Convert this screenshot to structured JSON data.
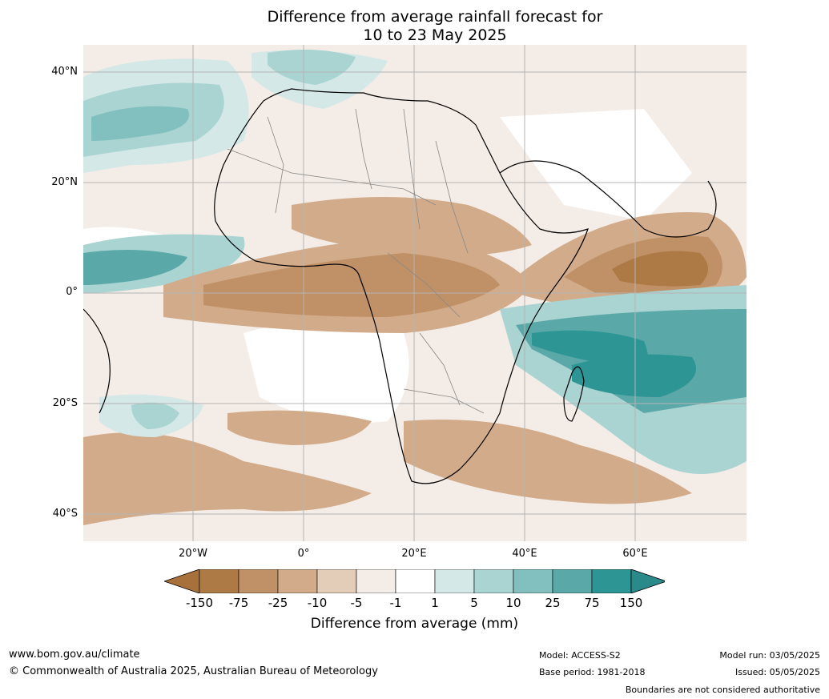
{
  "title_line1": "Difference from average rainfall forecast for",
  "title_line2": "10 to 23 May 2025",
  "lat_labels": [
    "40°N",
    "20°N",
    "0°",
    "20°S",
    "40°S"
  ],
  "lon_labels": [
    "20°W",
    "0°",
    "20°E",
    "40°E",
    "60°E"
  ],
  "colorbar": {
    "labels": [
      "-150",
      "-75",
      "-25",
      "-10",
      "-5",
      "-1",
      "1",
      "5",
      "10",
      "25",
      "75",
      "150"
    ],
    "colors": [
      "#a8713c",
      "#ad7a45",
      "#c09066",
      "#d2ac8a",
      "#e3ccb8",
      "#f4ece6",
      "#ffffff",
      "#d4e8e7",
      "#a9d4d2",
      "#82bfbf",
      "#5aa8a8",
      "#2e9595",
      "#2a8a8a"
    ],
    "title": "Difference from average (mm)"
  },
  "footer": {
    "site": "www.bom.gov.au/climate",
    "copyright": "© Commonwealth of Australia 2025, Australian Bureau of Meteorology",
    "model": "Model: ACCESS-S2",
    "base_period": "Base period: 1981-2018",
    "model_run": "Model run: 03/05/2025",
    "issued": "Issued: 05/05/2025",
    "disclaimer": "Boundaries are not considered authoritative"
  }
}
